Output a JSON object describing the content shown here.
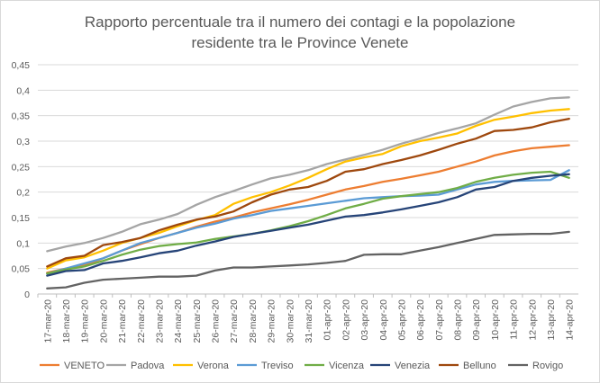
{
  "chart_data": {
    "type": "line",
    "title_lines": [
      "Rapporto percentuale tra il numero dei contagi e la popolazione",
      "residente tra le Province Venete"
    ],
    "xlabel": "",
    "ylabel": "",
    "ylim": [
      0,
      0.45
    ],
    "yticks": [
      "0",
      "0,05",
      "0,1",
      "0,15",
      "0,2",
      "0,25",
      "0,3",
      "0,35",
      "0,4",
      "0,45"
    ],
    "grid": true,
    "legend_position": "bottom",
    "categories": [
      "17-mar-20",
      "18-mar-20",
      "19-mar-20",
      "20-mar-20",
      "21-mar-20",
      "22-mar-20",
      "23-mar-20",
      "24-mar-20",
      "25-mar-20",
      "26-mar-20",
      "27-mar-20",
      "28-mar-20",
      "29-mar-20",
      "30-mar-20",
      "31-mar-20",
      "01-apr-20",
      "02-apr-20",
      "03-apr-20",
      "04-apr-20",
      "05-apr-20",
      "06-apr-20",
      "07-apr-20",
      "08-apr-20",
      "09-apr-20",
      "10-apr-20",
      "11-apr-20",
      "12-apr-20",
      "13-apr-20",
      "14-apr-20"
    ],
    "series": [
      {
        "name": "VENETO",
        "color": "#ED7D31",
        "values": [
          0.042,
          0.05,
          0.056,
          0.07,
          0.085,
          0.098,
          0.11,
          0.12,
          0.132,
          0.142,
          0.15,
          0.16,
          0.168,
          0.176,
          0.185,
          0.195,
          0.205,
          0.212,
          0.22,
          0.226,
          0.233,
          0.24,
          0.25,
          0.26,
          0.272,
          0.28,
          0.286,
          0.289,
          0.292
        ]
      },
      {
        "name": "Padova",
        "color": "#A5A5A5",
        "values": [
          0.084,
          0.093,
          0.1,
          0.11,
          0.122,
          0.137,
          0.146,
          0.157,
          0.175,
          0.19,
          0.202,
          0.215,
          0.227,
          0.234,
          0.243,
          0.255,
          0.264,
          0.273,
          0.283,
          0.295,
          0.305,
          0.316,
          0.325,
          0.335,
          0.352,
          0.368,
          0.377,
          0.384,
          0.386
        ]
      },
      {
        "name": "Verona",
        "color": "#FFC000",
        "values": [
          0.05,
          0.066,
          0.072,
          0.085,
          0.1,
          0.11,
          0.12,
          0.133,
          0.145,
          0.155,
          0.177,
          0.19,
          0.2,
          0.213,
          0.228,
          0.245,
          0.26,
          0.268,
          0.275,
          0.29,
          0.3,
          0.307,
          0.315,
          0.33,
          0.342,
          0.348,
          0.355,
          0.36,
          0.363
        ]
      },
      {
        "name": "Treviso",
        "color": "#5B9BD5",
        "values": [
          0.04,
          0.05,
          0.06,
          0.07,
          0.085,
          0.1,
          0.11,
          0.12,
          0.13,
          0.138,
          0.148,
          0.155,
          0.163,
          0.168,
          0.173,
          0.178,
          0.183,
          0.188,
          0.19,
          0.192,
          0.193,
          0.195,
          0.205,
          0.215,
          0.22,
          0.222,
          0.223,
          0.224,
          0.243
        ]
      },
      {
        "name": "Vicenza",
        "color": "#70AD47",
        "values": [
          0.04,
          0.048,
          0.054,
          0.065,
          0.077,
          0.087,
          0.094,
          0.098,
          0.101,
          0.108,
          0.113,
          0.118,
          0.125,
          0.133,
          0.143,
          0.155,
          0.168,
          0.177,
          0.187,
          0.192,
          0.196,
          0.2,
          0.208,
          0.22,
          0.228,
          0.234,
          0.238,
          0.24,
          0.228
        ]
      },
      {
        "name": "Venezia",
        "color": "#264478",
        "values": [
          0.036,
          0.045,
          0.047,
          0.06,
          0.065,
          0.072,
          0.08,
          0.085,
          0.095,
          0.103,
          0.112,
          0.118,
          0.124,
          0.13,
          0.136,
          0.144,
          0.152,
          0.155,
          0.16,
          0.166,
          0.173,
          0.18,
          0.19,
          0.205,
          0.21,
          0.222,
          0.228,
          0.232,
          0.235
        ]
      },
      {
        "name": "Belluno",
        "color": "#9E480E",
        "values": [
          0.054,
          0.07,
          0.075,
          0.096,
          0.102,
          0.11,
          0.125,
          0.136,
          0.146,
          0.152,
          0.162,
          0.18,
          0.195,
          0.205,
          0.21,
          0.222,
          0.24,
          0.245,
          0.255,
          0.263,
          0.272,
          0.283,
          0.295,
          0.305,
          0.32,
          0.322,
          0.327,
          0.337,
          0.344
        ]
      },
      {
        "name": "Rovigo",
        "color": "#636363",
        "values": [
          0.011,
          0.013,
          0.022,
          0.028,
          0.03,
          0.032,
          0.034,
          0.034,
          0.036,
          0.046,
          0.052,
          0.052,
          0.054,
          0.056,
          0.058,
          0.061,
          0.065,
          0.077,
          0.078,
          0.078,
          0.085,
          0.092,
          0.1,
          0.108,
          0.116,
          0.117,
          0.118,
          0.118,
          0.122
        ]
      }
    ]
  }
}
